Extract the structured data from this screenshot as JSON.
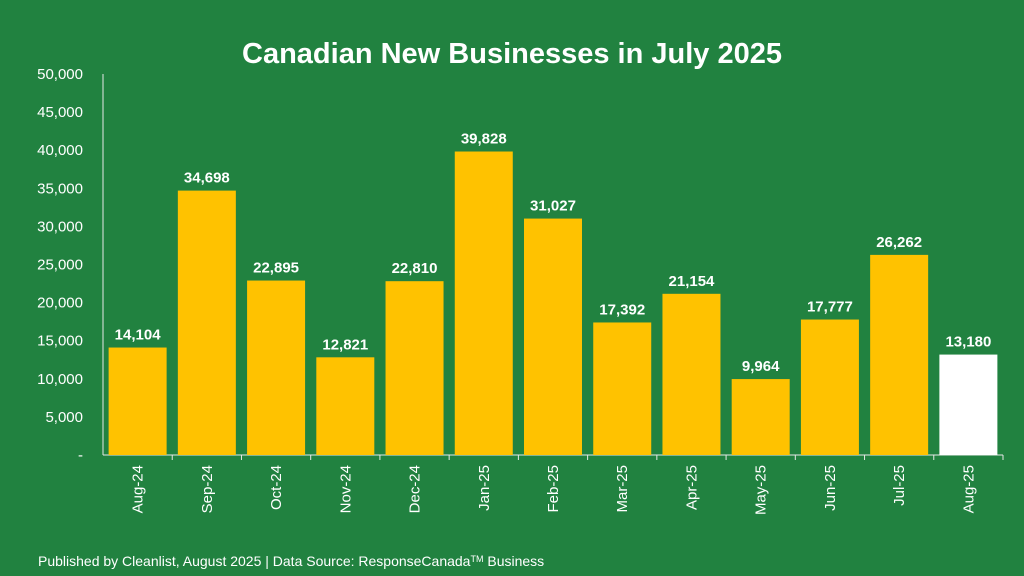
{
  "chart_data": {
    "type": "bar",
    "title": "Canadian New Businesses in July 2025",
    "xlabel": "",
    "ylabel": "",
    "ylim": [
      0,
      50000
    ],
    "y_ticks": [
      "-",
      "5,000",
      "10,000",
      "15,000",
      "20,000",
      "25,000",
      "30,000",
      "35,000",
      "40,000",
      "45,000",
      "50,000"
    ],
    "categories": [
      "Aug-24",
      "Sep-24",
      "Oct-24",
      "Nov-24",
      "Dec-24",
      "Jan-25",
      "Feb-25",
      "Mar-25",
      "Apr-25",
      "May-25",
      "Jun-25",
      "Jul-25",
      "Aug-25"
    ],
    "values": [
      14104,
      34698,
      22895,
      12821,
      22810,
      39828,
      31027,
      17392,
      21154,
      9964,
      17777,
      26262,
      13180
    ],
    "value_labels": [
      "14,104",
      "34,698",
      "22,895",
      "12,821",
      "22,810",
      "39,828",
      "31,027",
      "17,392",
      "21,154",
      "9,964",
      "17,777",
      "26,262",
      "13,180"
    ],
    "grid": false,
    "colors": {
      "background": "#218240",
      "bar": "#FFC200",
      "highlight_bar": "#FFFFFF",
      "text": "#FFFFFF",
      "axis": "#E8E8E8"
    },
    "highlight_category": "Aug-25"
  },
  "footer": {
    "text": "Published by Cleanlist, August 2025 | Data Source: ResponseCanada",
    "trademark": "TM",
    "suffix": " Business"
  }
}
